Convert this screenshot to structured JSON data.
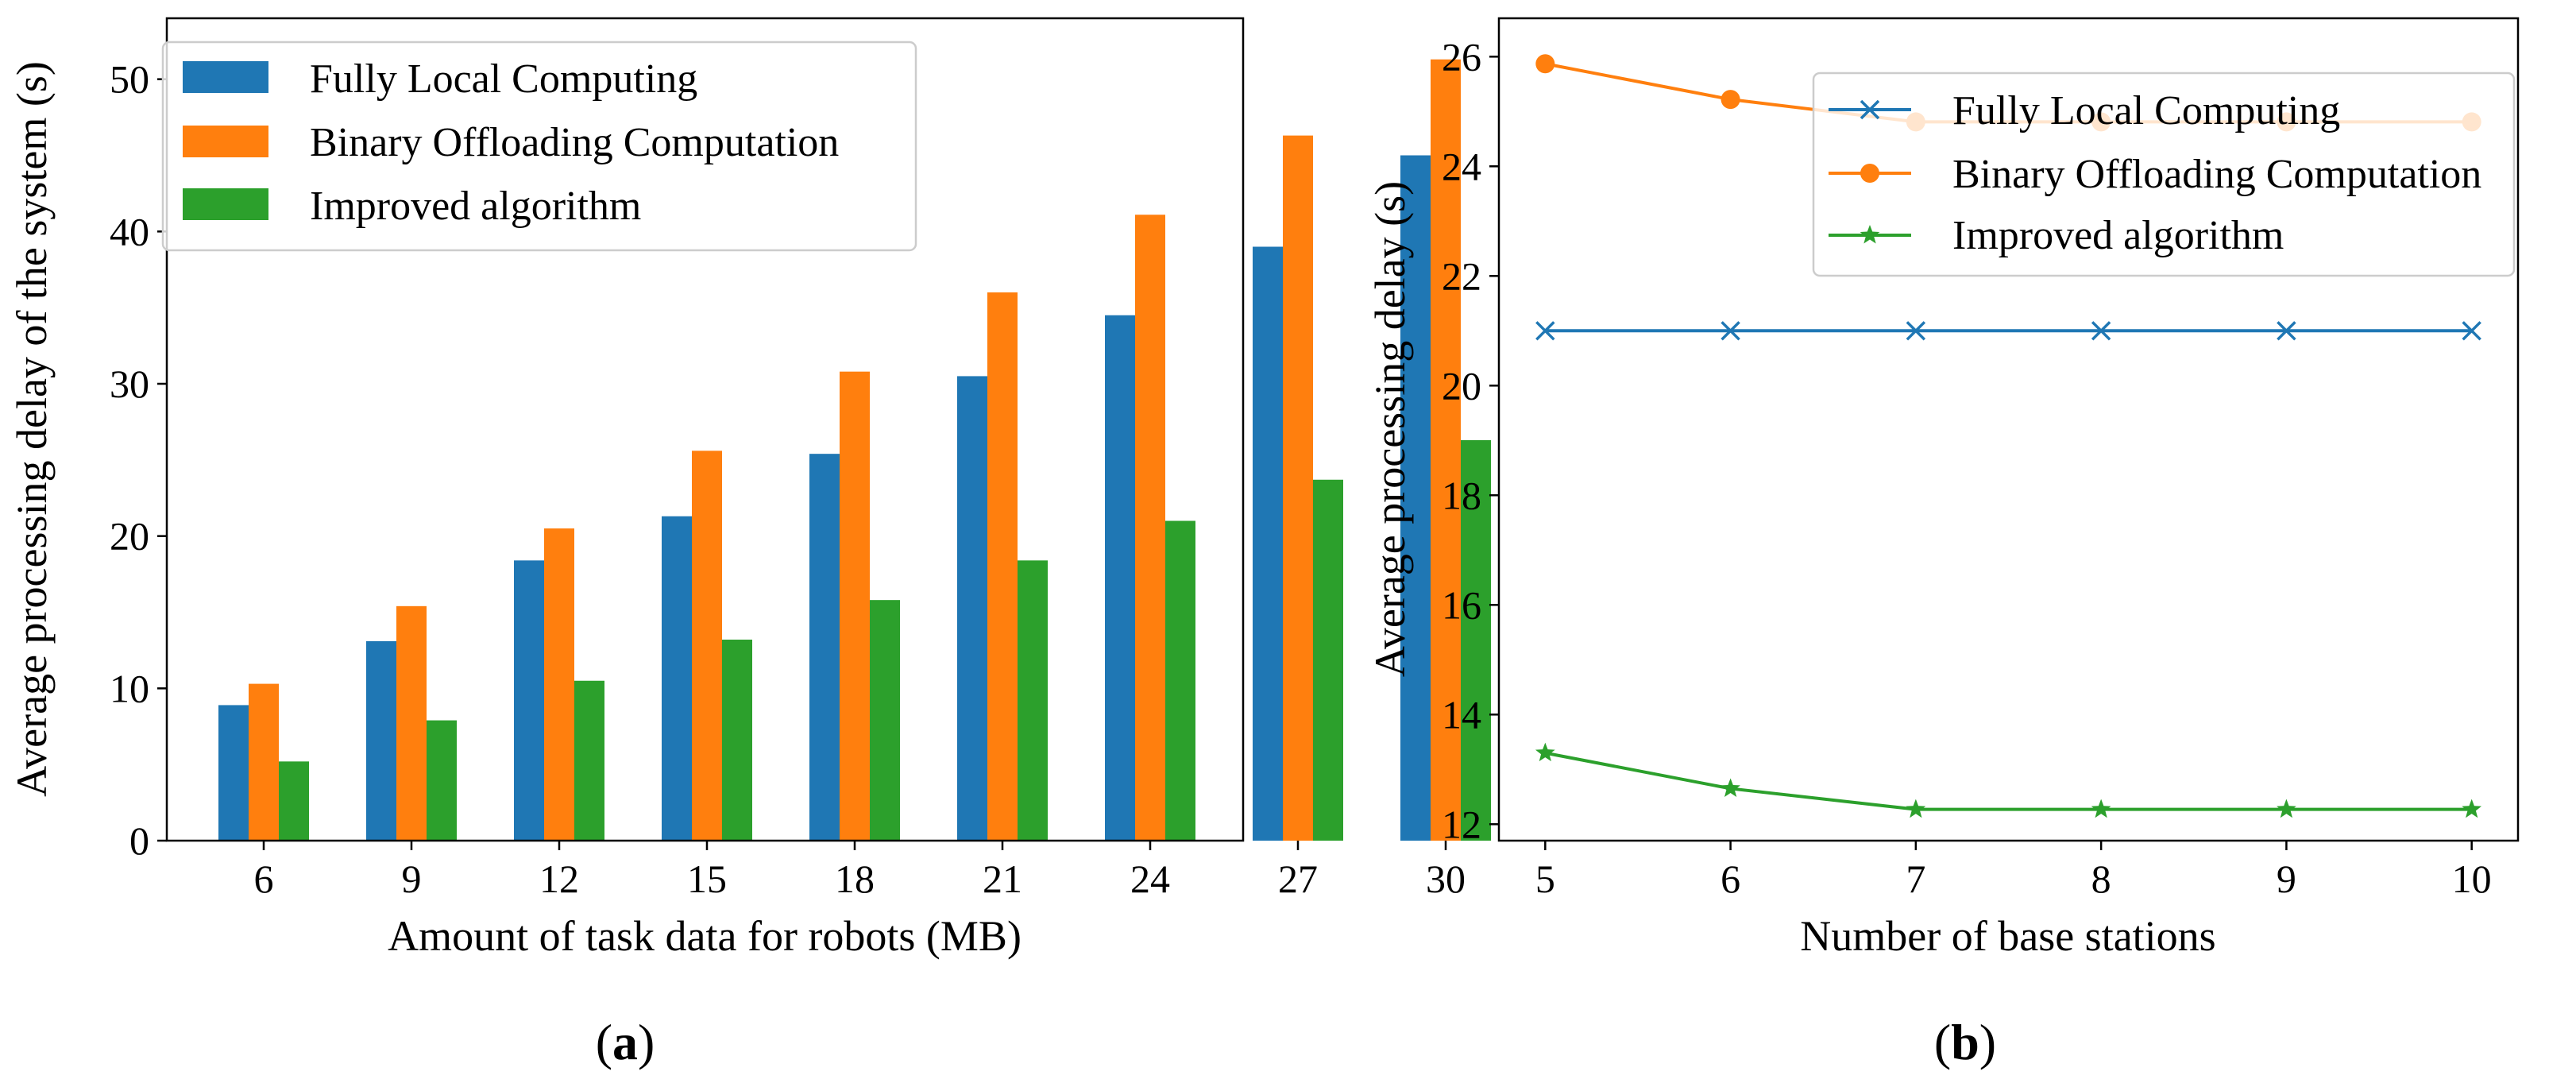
{
  "chart_data": [
    {
      "type": "bar",
      "panel": "a",
      "caption": {
        "open": "(",
        "letter": "a",
        "close": ")"
      },
      "xlabel": "Amount of task data for robots (MB)",
      "ylabel": "Average processing delay of the system (s)",
      "categories": [
        "6",
        "9",
        "12",
        "15",
        "18",
        "21",
        "24",
        "27",
        "30"
      ],
      "ylim": [
        0,
        54
      ],
      "yticks": [
        0,
        10,
        20,
        30,
        40,
        50
      ],
      "legend_position": "top-left",
      "series": [
        {
          "name": "Fully Local Computing",
          "color": "#1f77b4",
          "values": [
            8.9,
            13.1,
            18.4,
            21.3,
            25.4,
            30.5,
            34.5,
            39.0,
            45.0
          ]
        },
        {
          "name": "Binary Offloading Computation",
          "color": "#ff7f0e",
          "values": [
            10.3,
            15.4,
            20.5,
            25.6,
            30.8,
            36.0,
            41.1,
            46.3,
            51.3
          ]
        },
        {
          "name": "Improved algorithm",
          "color": "#2ca02c",
          "values": [
            5.2,
            7.9,
            10.5,
            13.2,
            15.8,
            18.4,
            21.0,
            23.7,
            26.3
          ]
        }
      ]
    },
    {
      "type": "line",
      "panel": "b",
      "caption": {
        "open": "(",
        "letter": "b",
        "close": ")"
      },
      "xlabel": "Number of base stations",
      "ylabel": "Average processing delay (s)",
      "x": [
        5,
        6,
        7,
        8,
        9,
        10
      ],
      "xlim": [
        4.75,
        10.25
      ],
      "ylim": [
        11.7,
        26.7
      ],
      "yticks": [
        12,
        14,
        16,
        18,
        20,
        22,
        24,
        26
      ],
      "legend_position": "top-right",
      "series": [
        {
          "name": "Fully Local Computing",
          "color": "#1f77b4",
          "marker": "x",
          "values": [
            21.0,
            21.0,
            21.0,
            21.0,
            21.0,
            21.0
          ]
        },
        {
          "name": "Binary Offloading Computation",
          "color": "#ff7f0e",
          "marker": "circle",
          "values": [
            25.87,
            25.22,
            24.81,
            24.81,
            24.81,
            24.81
          ]
        },
        {
          "name": "Improved algorithm",
          "color": "#2ca02c",
          "marker": "star",
          "values": [
            13.3,
            12.65,
            12.27,
            12.27,
            12.27,
            12.27
          ]
        }
      ]
    }
  ]
}
